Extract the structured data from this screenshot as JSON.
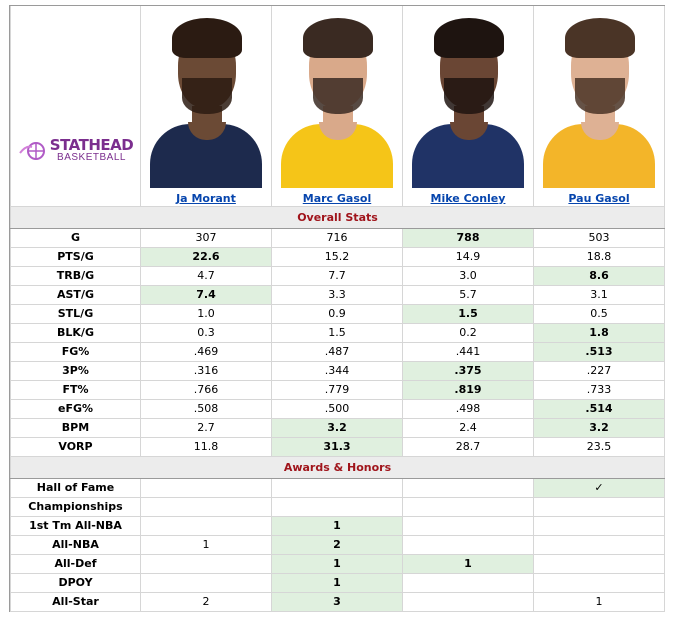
{
  "brand": {
    "top": "STATHEAD",
    "bottom": "BASKETBALL",
    "color": "#7b2e8e"
  },
  "players": [
    {
      "name": "Ja Morant",
      "jersey_color": "#1d2a4d",
      "skin": "#6b4a35",
      "hair": "#2b1b12"
    },
    {
      "name": "Marc Gasol",
      "jersey_color": "#f5c518",
      "skin": "#d9a98a",
      "hair": "#3a2a22"
    },
    {
      "name": "Mike Conley",
      "jersey_color": "#203366",
      "skin": "#6a4634",
      "hair": "#1e1410"
    },
    {
      "name": "Pau Gasol",
      "jersey_color": "#f3b529",
      "skin": "#deb194",
      "hair": "#4a3426"
    }
  ],
  "sections": {
    "overall": "Overall Stats",
    "awards": "Awards & Honors"
  },
  "overall_rows": [
    {
      "label": "G",
      "values": [
        "307",
        "716",
        "788",
        "503"
      ],
      "best": 2
    },
    {
      "label": "PTS/G",
      "values": [
        "22.6",
        "15.2",
        "14.9",
        "18.8"
      ],
      "best": 0
    },
    {
      "label": "TRB/G",
      "values": [
        "4.7",
        "7.7",
        "3.0",
        "8.6"
      ],
      "best": 3
    },
    {
      "label": "AST/G",
      "values": [
        "7.4",
        "3.3",
        "5.7",
        "3.1"
      ],
      "best": 0
    },
    {
      "label": "STL/G",
      "values": [
        "1.0",
        "0.9",
        "1.5",
        "0.5"
      ],
      "best": 2
    },
    {
      "label": "BLK/G",
      "values": [
        "0.3",
        "1.5",
        "0.2",
        "1.8"
      ],
      "best": 3
    },
    {
      "label": "FG%",
      "values": [
        ".469",
        ".487",
        ".441",
        ".513"
      ],
      "best": 3
    },
    {
      "label": "3P%",
      "values": [
        ".316",
        ".344",
        ".375",
        ".227"
      ],
      "best": 2
    },
    {
      "label": "FT%",
      "values": [
        ".766",
        ".779",
        ".819",
        ".733"
      ],
      "best": 2
    },
    {
      "label": "eFG%",
      "values": [
        ".508",
        ".500",
        ".498",
        ".514"
      ],
      "best": 3
    },
    {
      "label": "BPM",
      "values": [
        "2.7",
        "3.2",
        "2.4",
        "3.2"
      ],
      "best": [
        1,
        3
      ]
    },
    {
      "label": "VORP",
      "values": [
        "11.8",
        "31.3",
        "28.7",
        "23.5"
      ],
      "best": 1
    }
  ],
  "award_rows": [
    {
      "label": "Hall of Fame",
      "values": [
        "",
        "",
        "",
        "✓"
      ],
      "best": 3
    },
    {
      "label": "Championships",
      "values": [
        "",
        "",
        "",
        ""
      ],
      "best": -1
    },
    {
      "label": "1st Tm All-NBA",
      "values": [
        "",
        "1",
        "",
        ""
      ],
      "best": 1
    },
    {
      "label": "All-NBA",
      "values": [
        "1",
        "2",
        "",
        ""
      ],
      "best": 1
    },
    {
      "label": "All-Def",
      "values": [
        "",
        "1",
        "1",
        ""
      ],
      "best": [
        1,
        2
      ]
    },
    {
      "label": "DPOY",
      "values": [
        "",
        "1",
        "",
        ""
      ],
      "best": 1
    },
    {
      "label": "All-Star",
      "values": [
        "2",
        "3",
        "",
        "1"
      ],
      "best": 1
    }
  ]
}
